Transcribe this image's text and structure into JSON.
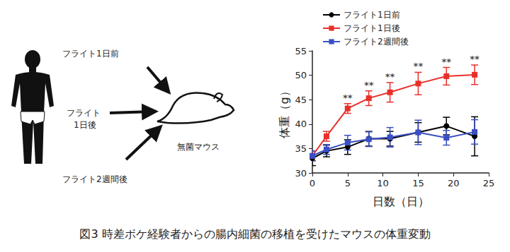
{
  "chart_data": {
    "type": "line",
    "title": "図3 時差ボケ経験者からの腸内細菌の移植を受けたマウスの体重変動",
    "x_label": "日数（日）",
    "y_label": "体重（g）",
    "xlim": [
      0,
      25
    ],
    "xticks": [
      0,
      5,
      10,
      15,
      20,
      25
    ],
    "ylim": [
      30,
      55
    ],
    "yticks": [
      30,
      35,
      40,
      45,
      50,
      55
    ],
    "grid": false,
    "legend": "top-left",
    "series": [
      {
        "name": "フライト1日前",
        "color": "#000000",
        "marker": "circle",
        "x": [
          0,
          2,
          5,
          8,
          11,
          15,
          19,
          23
        ],
        "values": [
          33.0,
          34.5,
          35.3,
          37.0,
          37.0,
          38.3,
          39.6,
          37.5
        ],
        "errors": [
          1.5,
          1.2,
          1.5,
          1.5,
          1.5,
          2.0,
          1.8,
          4.0
        ]
      },
      {
        "name": "フライト1日後",
        "color": "#e8302a",
        "marker": "square",
        "x": [
          0,
          2,
          5,
          8,
          11,
          15,
          19,
          23
        ],
        "values": [
          33.5,
          37.5,
          43.2,
          45.3,
          46.5,
          48.3,
          49.8,
          50.1
        ],
        "errors": [
          1.0,
          1.0,
          1.0,
          1.5,
          2.0,
          2.3,
          1.8,
          2.0
        ],
        "annotations": [
          {
            "x": 5,
            "text": "**"
          },
          {
            "x": 8,
            "text": "**"
          },
          {
            "x": 11,
            "text": "**"
          },
          {
            "x": 15,
            "text": "**"
          },
          {
            "x": 19,
            "text": "**"
          },
          {
            "x": 23,
            "text": "**"
          }
        ]
      },
      {
        "name": "フライト2週間後",
        "color": "#3a4fc4",
        "marker": "square",
        "x": [
          0,
          2,
          5,
          8,
          11,
          15,
          19,
          23
        ],
        "values": [
          33.5,
          34.8,
          36.2,
          36.9,
          37.3,
          38.3,
          37.2,
          38.4
        ],
        "errors": [
          1.0,
          1.0,
          1.5,
          1.5,
          2.0,
          2.5,
          1.5,
          2.5
        ]
      }
    ]
  },
  "diagram": {
    "labels": [
      "フライト1日前",
      "フライト\n1日後",
      "フライト2週間後"
    ],
    "mouse_label": "無菌マウス"
  }
}
